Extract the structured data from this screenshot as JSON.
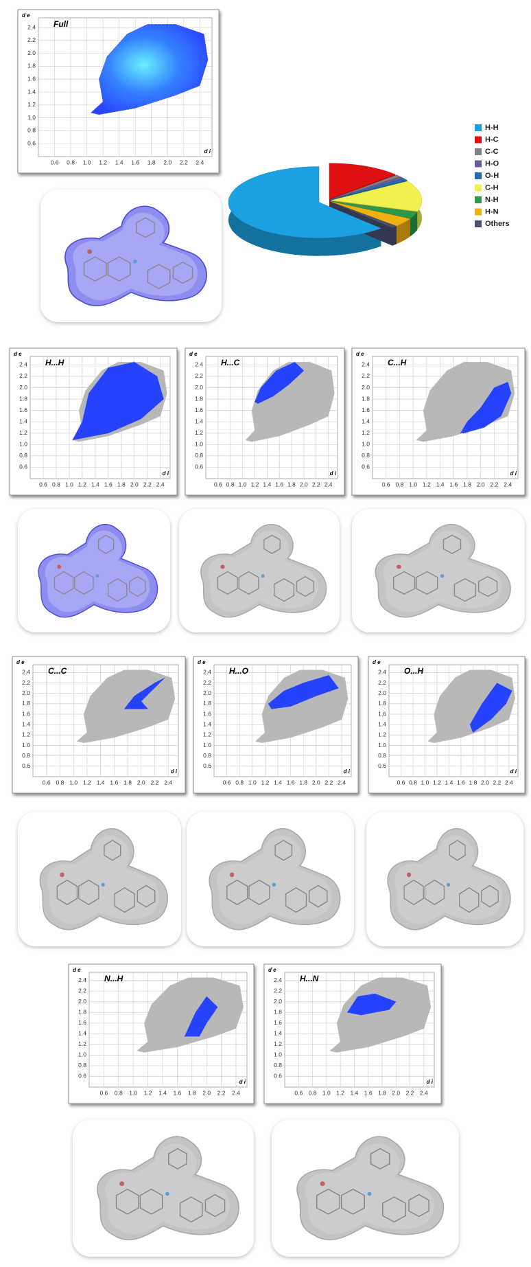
{
  "chart_data": [
    {
      "type": "fingerprint",
      "title": "Full",
      "x_label": "d i",
      "y_label": "d e",
      "xlim": [
        0.4,
        2.55
      ],
      "ylim": [
        0.4,
        2.55
      ],
      "xticks": [
        0.6,
        0.8,
        {
          "value": 1,
          "label": "1.0"
        },
        1.2,
        1.4,
        1.6,
        1.8,
        {
          "value": 2,
          "label": "2.0"
        },
        2.2,
        2.4
      ],
      "yticks": [
        0.6,
        0.8,
        {
          "value": 1,
          "label": "1.0"
        },
        1.2,
        1.4,
        1.6,
        1.8,
        {
          "value": 2,
          "label": "2.0"
        },
        2.2,
        2.4
      ],
      "highlight": {
        "color": "#1e3cff",
        "x": [
          1.05,
          1.2,
          1.15,
          1.25,
          1.5,
          1.75,
          2.1,
          2.45,
          2.5,
          2.4,
          2.1,
          1.6,
          1.15
        ],
        "y": [
          1.08,
          1.25,
          1.6,
          1.95,
          2.3,
          2.45,
          2.45,
          2.3,
          1.9,
          1.5,
          1.35,
          1.15,
          1.05
        ]
      }
    },
    {
      "type": "fingerprint",
      "title": "H...H",
      "x_label": "d i",
      "y_label": "d e",
      "xlim": [
        0.4,
        2.55
      ],
      "ylim": [
        0.4,
        2.55
      ],
      "xticks": [
        0.6,
        0.8,
        {
          "value": 1,
          "label": "1.0"
        },
        1.2,
        1.4,
        1.6,
        1.8,
        {
          "value": 2,
          "label": "2.0"
        },
        2.2,
        2.4
      ],
      "yticks": [
        0.6,
        0.8,
        {
          "value": 1,
          "label": "1.0"
        },
        1.2,
        1.4,
        1.6,
        1.8,
        {
          "value": 2,
          "label": "2.0"
        },
        2.2,
        2.4
      ],
      "background": {
        "color": "#b4b4b4",
        "x": [
          1.05,
          1.2,
          1.15,
          1.25,
          1.5,
          1.75,
          2.1,
          2.45,
          2.5,
          2.4,
          2.1,
          1.6,
          1.15
        ],
        "y": [
          1.08,
          1.25,
          1.6,
          1.95,
          2.3,
          2.45,
          2.45,
          2.3,
          1.9,
          1.5,
          1.35,
          1.15,
          1.05
        ]
      },
      "highlight": {
        "color": "#1e3cff",
        "x": [
          1.05,
          1.2,
          1.3,
          1.6,
          2.0,
          2.35,
          2.45,
          2.1,
          1.6
        ],
        "y": [
          1.08,
          1.4,
          1.9,
          2.35,
          2.45,
          2.2,
          1.8,
          1.45,
          1.2
        ]
      }
    },
    {
      "type": "fingerprint",
      "title": "H...C",
      "x_label": "d i",
      "y_label": "d e",
      "xlim": [
        0.4,
        2.55
      ],
      "ylim": [
        0.4,
        2.55
      ],
      "xticks": [
        0.6,
        0.8,
        {
          "value": 1,
          "label": "1.0"
        },
        1.2,
        1.4,
        1.6,
        1.8,
        {
          "value": 2,
          "label": "2.0"
        },
        2.2,
        2.4
      ],
      "yticks": [
        0.6,
        0.8,
        {
          "value": 1,
          "label": "1.0"
        },
        1.2,
        1.4,
        1.6,
        1.8,
        {
          "value": 2,
          "label": "2.0"
        },
        2.2,
        2.4
      ],
      "background": {
        "color": "#b4b4b4",
        "x": [
          1.05,
          1.2,
          1.15,
          1.25,
          1.5,
          1.75,
          2.1,
          2.45,
          2.5,
          2.4,
          2.1,
          1.6,
          1.15
        ],
        "y": [
          1.08,
          1.25,
          1.6,
          1.95,
          2.3,
          2.45,
          2.45,
          2.3,
          1.9,
          1.5,
          1.35,
          1.15,
          1.05
        ]
      },
      "highlight": {
        "color": "#1e3cff",
        "x": [
          1.2,
          1.3,
          1.55,
          1.85,
          2.0,
          1.75,
          1.5,
          1.25
        ],
        "y": [
          1.75,
          2.0,
          2.3,
          2.45,
          2.3,
          2.05,
          1.85,
          1.72
        ]
      }
    },
    {
      "type": "fingerprint",
      "title": "C...H",
      "x_label": "d i",
      "y_label": "d e",
      "xlim": [
        0.4,
        2.55
      ],
      "ylim": [
        0.4,
        2.55
      ],
      "xticks": [
        0.6,
        0.8,
        {
          "value": 1,
          "label": "1.0"
        },
        1.2,
        1.4,
        1.6,
        1.8,
        {
          "value": 2,
          "label": "2.0"
        },
        2.2,
        2.4
      ],
      "yticks": [
        0.6,
        0.8,
        {
          "value": 1,
          "label": "1.0"
        },
        1.2,
        1.4,
        1.6,
        1.8,
        {
          "value": 2,
          "label": "2.0"
        },
        2.2,
        2.4
      ],
      "background": {
        "color": "#b4b4b4",
        "x": [
          1.05,
          1.2,
          1.15,
          1.25,
          1.5,
          1.75,
          2.1,
          2.45,
          2.5,
          2.4,
          2.1,
          1.6,
          1.15
        ],
        "y": [
          1.08,
          1.25,
          1.6,
          1.95,
          2.3,
          2.45,
          2.45,
          2.3,
          1.9,
          1.5,
          1.35,
          1.15,
          1.05
        ]
      },
      "highlight": {
        "color": "#1e3cff",
        "x": [
          1.75,
          2.05,
          2.3,
          2.45,
          2.4,
          2.2,
          2.0,
          1.8,
          1.7
        ],
        "y": [
          1.2,
          1.3,
          1.5,
          1.9,
          2.1,
          2.0,
          1.65,
          1.4,
          1.2
        ]
      }
    },
    {
      "type": "fingerprint",
      "title": "C...C",
      "x_label": "d i",
      "y_label": "d e",
      "xlim": [
        0.4,
        2.55
      ],
      "ylim": [
        0.4,
        2.55
      ],
      "xticks": [
        0.6,
        0.8,
        {
          "value": 1,
          "label": "1.0"
        },
        1.2,
        1.4,
        1.6,
        1.8,
        {
          "value": 2,
          "label": "2.0"
        },
        2.2,
        2.4
      ],
      "yticks": [
        0.6,
        0.8,
        {
          "value": 1,
          "label": "1.0"
        },
        1.2,
        1.4,
        1.6,
        1.8,
        {
          "value": 2,
          "label": "2.0"
        },
        2.2,
        2.4
      ],
      "background": {
        "color": "#b4b4b4",
        "x": [
          1.05,
          1.2,
          1.15,
          1.25,
          1.5,
          1.75,
          2.1,
          2.45,
          2.5,
          2.4,
          2.1,
          1.6,
          1.15
        ],
        "y": [
          1.08,
          1.25,
          1.6,
          1.95,
          2.3,
          2.45,
          2.45,
          2.3,
          1.9,
          1.5,
          1.35,
          1.15,
          1.05
        ]
      },
      "highlight": {
        "color": "#1e3cff",
        "x": [
          1.75,
          1.9,
          2.2,
          2.35,
          2.0,
          2.1
        ],
        "y": [
          1.7,
          1.95,
          2.2,
          2.3,
          1.85,
          1.7
        ]
      }
    },
    {
      "type": "fingerprint",
      "title": "H...O",
      "x_label": "d i",
      "y_label": "d e",
      "xlim": [
        0.4,
        2.55
      ],
      "ylim": [
        0.4,
        2.55
      ],
      "xticks": [
        0.6,
        0.8,
        {
          "value": 1,
          "label": "1.0"
        },
        1.2,
        1.4,
        1.6,
        1.8,
        {
          "value": 2,
          "label": "2.0"
        },
        2.2,
        2.4
      ],
      "yticks": [
        0.6,
        0.8,
        {
          "value": 1,
          "label": "1.0"
        },
        1.2,
        1.4,
        1.6,
        1.8,
        {
          "value": 2,
          "label": "2.0"
        },
        2.2,
        2.4
      ],
      "background": {
        "color": "#b4b4b4",
        "x": [
          1.05,
          1.2,
          1.15,
          1.25,
          1.5,
          1.75,
          2.1,
          2.45,
          2.5,
          2.4,
          2.1,
          1.6,
          1.15
        ],
        "y": [
          1.08,
          1.25,
          1.6,
          1.95,
          2.3,
          2.45,
          2.45,
          2.3,
          1.9,
          1.5,
          1.35,
          1.15,
          1.05
        ]
      },
      "highlight": {
        "color": "#1e3cff",
        "x": [
          1.25,
          1.5,
          1.8,
          2.2,
          2.35,
          2.0,
          1.6,
          1.3
        ],
        "y": [
          1.8,
          2.05,
          2.2,
          2.35,
          2.1,
          1.95,
          1.75,
          1.7
        ]
      }
    },
    {
      "type": "fingerprint",
      "title": "O...H",
      "x_label": "d i",
      "y_label": "d e",
      "xlim": [
        0.4,
        2.55
      ],
      "ylim": [
        0.4,
        2.55
      ],
      "xticks": [
        0.6,
        0.8,
        {
          "value": 1,
          "label": "1.0"
        },
        1.2,
        1.4,
        1.6,
        1.8,
        {
          "value": 2,
          "label": "2.0"
        },
        2.2,
        2.4
      ],
      "yticks": [
        0.6,
        0.8,
        {
          "value": 1,
          "label": "1.0"
        },
        1.2,
        1.4,
        1.6,
        1.8,
        {
          "value": 2,
          "label": "2.0"
        },
        2.2,
        2.4
      ],
      "background": {
        "color": "#b4b4b4",
        "x": [
          1.05,
          1.2,
          1.15,
          1.25,
          1.5,
          1.75,
          2.1,
          2.45,
          2.5,
          2.4,
          2.1,
          1.6,
          1.15
        ],
        "y": [
          1.08,
          1.25,
          1.6,
          1.95,
          2.3,
          2.45,
          2.45,
          2.3,
          1.9,
          1.5,
          1.35,
          1.15,
          1.05
        ]
      },
      "highlight": {
        "color": "#1e3cff",
        "x": [
          1.8,
          2.1,
          2.35,
          2.45,
          2.2,
          1.95,
          1.75
        ],
        "y": [
          1.25,
          1.5,
          1.8,
          2.05,
          2.2,
          1.8,
          1.4
        ]
      }
    },
    {
      "type": "fingerprint",
      "title": "N...H",
      "x_label": "d i",
      "y_label": "d e",
      "xlim": [
        0.4,
        2.55
      ],
      "ylim": [
        0.4,
        2.55
      ],
      "xticks": [
        0.6,
        0.8,
        {
          "value": 1,
          "label": "1.0"
        },
        1.2,
        1.4,
        1.6,
        1.8,
        {
          "value": 2,
          "label": "2.0"
        },
        2.2,
        2.4
      ],
      "yticks": [
        0.6,
        0.8,
        {
          "value": 1,
          "label": "1.0"
        },
        1.2,
        1.4,
        1.6,
        1.8,
        {
          "value": 2,
          "label": "2.0"
        },
        2.2,
        2.4
      ],
      "background": {
        "color": "#b4b4b4",
        "x": [
          1.05,
          1.2,
          1.15,
          1.25,
          1.5,
          1.75,
          2.1,
          2.45,
          2.5,
          2.4,
          2.1,
          1.6,
          1.15
        ],
        "y": [
          1.08,
          1.25,
          1.6,
          1.95,
          2.3,
          2.45,
          2.45,
          2.3,
          1.9,
          1.5,
          1.35,
          1.15,
          1.05
        ]
      },
      "highlight": {
        "color": "#1e3cff",
        "x": [
          1.7,
          1.85,
          2.0,
          2.15,
          2.0,
          1.9
        ],
        "y": [
          1.35,
          1.8,
          2.1,
          1.9,
          1.6,
          1.35
        ]
      }
    },
    {
      "type": "fingerprint",
      "title": "H...N",
      "x_label": "d i",
      "y_label": "d e",
      "xlim": [
        0.4,
        2.55
      ],
      "ylim": [
        0.4,
        2.55
      ],
      "xticks": [
        0.6,
        0.8,
        {
          "value": 1,
          "label": "1.0"
        },
        1.2,
        1.4,
        1.6,
        1.8,
        {
          "value": 2,
          "label": "2.0"
        },
        2.2,
        2.4
      ],
      "yticks": [
        0.6,
        0.8,
        {
          "value": 1,
          "label": "1.0"
        },
        1.2,
        1.4,
        1.6,
        1.8,
        {
          "value": 2,
          "label": "2.0"
        },
        2.2,
        2.4
      ],
      "background": {
        "color": "#b4b4b4",
        "x": [
          1.05,
          1.2,
          1.15,
          1.25,
          1.5,
          1.75,
          2.1,
          2.45,
          2.5,
          2.4,
          2.1,
          1.6,
          1.15
        ],
        "y": [
          1.08,
          1.25,
          1.6,
          1.95,
          2.3,
          2.45,
          2.45,
          2.3,
          1.9,
          1.5,
          1.35,
          1.15,
          1.05
        ]
      },
      "highlight": {
        "color": "#1e3cff",
        "x": [
          1.3,
          1.45,
          1.7,
          2.0,
          1.9,
          1.5
        ],
        "y": [
          1.8,
          2.1,
          2.15,
          2.0,
          1.85,
          1.75
        ]
      }
    },
    {
      "type": "pie",
      "categories": [
        "H-H",
        "H-C",
        "C-C",
        "H-O",
        "O-H",
        "C-H",
        "N-H",
        "H-N",
        "Others"
      ],
      "values": [
        62,
        13,
        1,
        1,
        1,
        14,
        3,
        4,
        1
      ],
      "colors": [
        "#1ba1e2",
        "#e01010",
        "#808080",
        "#6a5a9a",
        "#1f6fb0",
        "#f0f050",
        "#2a9a4a",
        "#f0b010",
        "#4a5070"
      ],
      "legend": "right"
    }
  ]
}
